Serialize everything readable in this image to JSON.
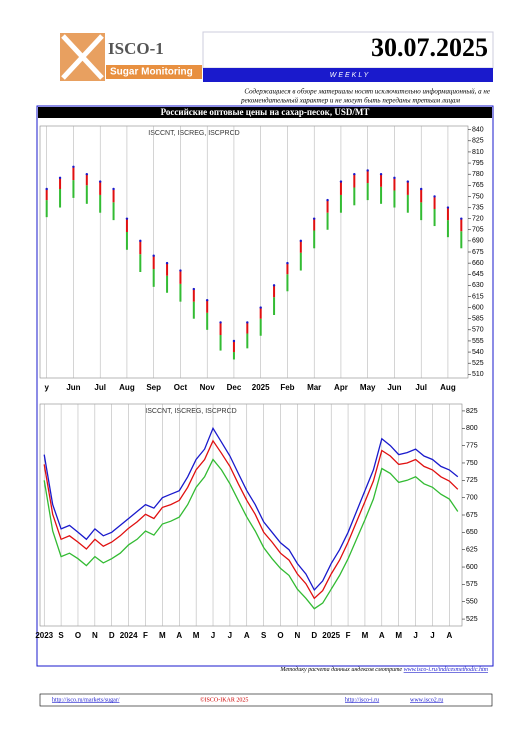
{
  "header": {
    "logo_title": "ISCO-1",
    "logo_subtitle": "Sugar Monitoring",
    "date": "30.07.2025",
    "frequency": "WEEKLY"
  },
  "disclaimer": [
    "Содержащиеся в обзоре материалы носят исключительно информационный, а не",
    "рекомендательный характер и не могут быть переданы третьим лицам"
  ],
  "section_title": "Российские оптовые цены на сахар-песок, USD/MT",
  "chart_data": [
    {
      "type": "bar",
      "title": "ISCCNT, ISCREG, ISCPRCD",
      "categories": [
        "y",
        null,
        "Jun",
        null,
        "Jul",
        null,
        "Aug",
        null,
        "Sep",
        null,
        "Oct",
        null,
        "Nov",
        null,
        "Dec",
        null,
        "2025",
        null,
        "Feb",
        null,
        "Mar",
        null,
        "Apr",
        null,
        "May",
        null,
        "Jun",
        null,
        "Jul",
        null,
        "Aug",
        null
      ],
      "series": [
        {
          "name": "ISCCNT",
          "color": "#1a1acc",
          "values": [
            760,
            775,
            790,
            780,
            770,
            760,
            720,
            690,
            670,
            660,
            650,
            625,
            610,
            580,
            555,
            580,
            600,
            630,
            660,
            690,
            720,
            745,
            770,
            780,
            785,
            780,
            775,
            770,
            760,
            750,
            735,
            720
          ]
        },
        {
          "name": "ISCREG",
          "color": "#e01010",
          "values": [
            745,
            760,
            772,
            765,
            752,
            742,
            702,
            672,
            652,
            643,
            632,
            608,
            593,
            563,
            540,
            565,
            585,
            614,
            645,
            674,
            704,
            728,
            752,
            762,
            768,
            763,
            758,
            752,
            742,
            733,
            718,
            703
          ]
        },
        {
          "name": "ISCPRCD",
          "color": "#33bb33",
          "values": [
            722,
            735,
            748,
            740,
            728,
            718,
            678,
            648,
            628,
            620,
            608,
            585,
            570,
            542,
            530,
            545,
            562,
            590,
            622,
            650,
            680,
            705,
            728,
            738,
            745,
            740,
            735,
            728,
            718,
            710,
            695,
            680
          ]
        }
      ],
      "ylim": [
        505,
        845
      ],
      "yticks": [
        510,
        525,
        540,
        555,
        570,
        585,
        600,
        615,
        630,
        645,
        660,
        675,
        690,
        705,
        720,
        735,
        750,
        765,
        780,
        795,
        810,
        825,
        840
      ],
      "grid": true
    },
    {
      "type": "line",
      "title": "ISCCNT, ISCREG, ISCPRCD",
      "categories": [
        "2023",
        null,
        "S",
        null,
        "O",
        null,
        "N",
        null,
        "D",
        null,
        "2024",
        null,
        "F",
        null,
        "M",
        null,
        "A",
        null,
        "M",
        null,
        "J",
        null,
        "J",
        null,
        "A",
        null,
        "S",
        null,
        "O",
        null,
        "N",
        null,
        "D",
        null,
        "2025",
        null,
        "F",
        null,
        "M",
        null,
        "A",
        null,
        "M",
        null,
        "J",
        null,
        "J",
        null,
        "A",
        null
      ],
      "series": [
        {
          "name": "ISCCNT",
          "color": "#1a1acc",
          "values": [
            762,
            690,
            655,
            660,
            650,
            640,
            655,
            645,
            650,
            660,
            670,
            680,
            690,
            685,
            700,
            705,
            710,
            730,
            755,
            770,
            800,
            780,
            760,
            735,
            710,
            690,
            665,
            650,
            635,
            625,
            605,
            590,
            567,
            580,
            605,
            625,
            650,
            680,
            710,
            740,
            785,
            775,
            762,
            765,
            770,
            760,
            755,
            745,
            740,
            730
          ]
        },
        {
          "name": "ISCREG",
          "color": "#e01010",
          "values": [
            748,
            676,
            640,
            645,
            636,
            626,
            640,
            630,
            636,
            645,
            656,
            665,
            676,
            670,
            686,
            690,
            696,
            715,
            740,
            755,
            782,
            764,
            745,
            720,
            696,
            676,
            650,
            636,
            620,
            610,
            590,
            576,
            555,
            566,
            590,
            610,
            636,
            665,
            694,
            724,
            768,
            760,
            748,
            750,
            755,
            745,
            740,
            730,
            724,
            712
          ]
        },
        {
          "name": "ISCPRCD",
          "color": "#33bb33",
          "values": [
            725,
            652,
            615,
            620,
            612,
            602,
            615,
            606,
            612,
            620,
            632,
            640,
            652,
            646,
            662,
            666,
            672,
            690,
            715,
            730,
            755,
            740,
            720,
            696,
            672,
            652,
            628,
            612,
            598,
            588,
            568,
            555,
            540,
            548,
            568,
            588,
            612,
            640,
            668,
            698,
            742,
            735,
            722,
            725,
            730,
            720,
            715,
            705,
            698,
            680
          ]
        }
      ],
      "ylim": [
        515,
        835
      ],
      "yticks": [
        525,
        550,
        575,
        600,
        625,
        650,
        675,
        700,
        725,
        750,
        775,
        800,
        825
      ],
      "grid": true
    }
  ],
  "footer": {
    "methodology": "Методику расчета данных индексов смотрите",
    "methodology_link": "www.isco-i.ru/indicesmethodic.htm",
    "links": [
      "http://isco.ru/markets/sugar/",
      "©ISCO-IKAR 2025",
      "http://isco-i.ru",
      "www.isco2.ru"
    ]
  }
}
